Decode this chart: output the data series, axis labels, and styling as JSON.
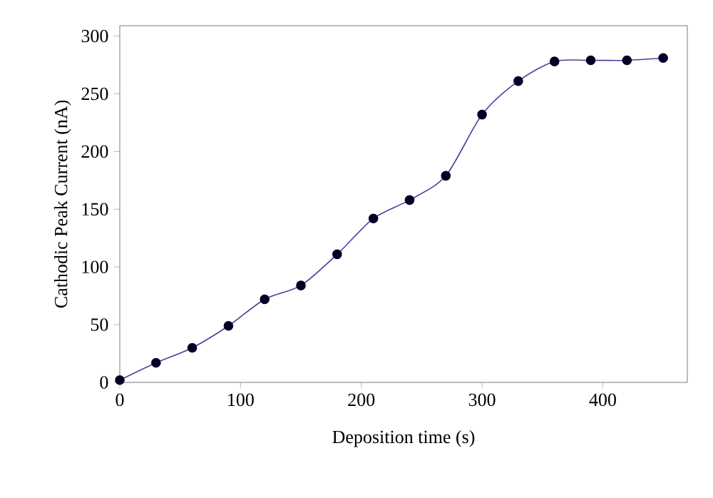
{
  "chart_data": {
    "type": "line",
    "xlabel": "Deposition time (s)",
    "ylabel": "Cathodic Peak Current (nA)",
    "x": [
      0,
      30,
      60,
      90,
      120,
      150,
      180,
      210,
      240,
      270,
      300,
      330,
      360,
      390,
      420,
      450
    ],
    "series": [
      {
        "color": "#4b3f9e",
        "values": [
          2,
          17,
          30,
          49,
          72,
          84,
          111,
          142,
          158,
          179,
          232,
          261,
          278,
          279,
          279,
          281
        ]
      }
    ],
    "xlim": [
      0,
      470
    ],
    "ylim": [
      0,
      309
    ],
    "xticks": [
      0,
      100,
      200,
      300,
      400
    ],
    "yticks": [
      0,
      50,
      100,
      150,
      200,
      250,
      300
    ],
    "marker": "circle",
    "line_style": "solid"
  }
}
